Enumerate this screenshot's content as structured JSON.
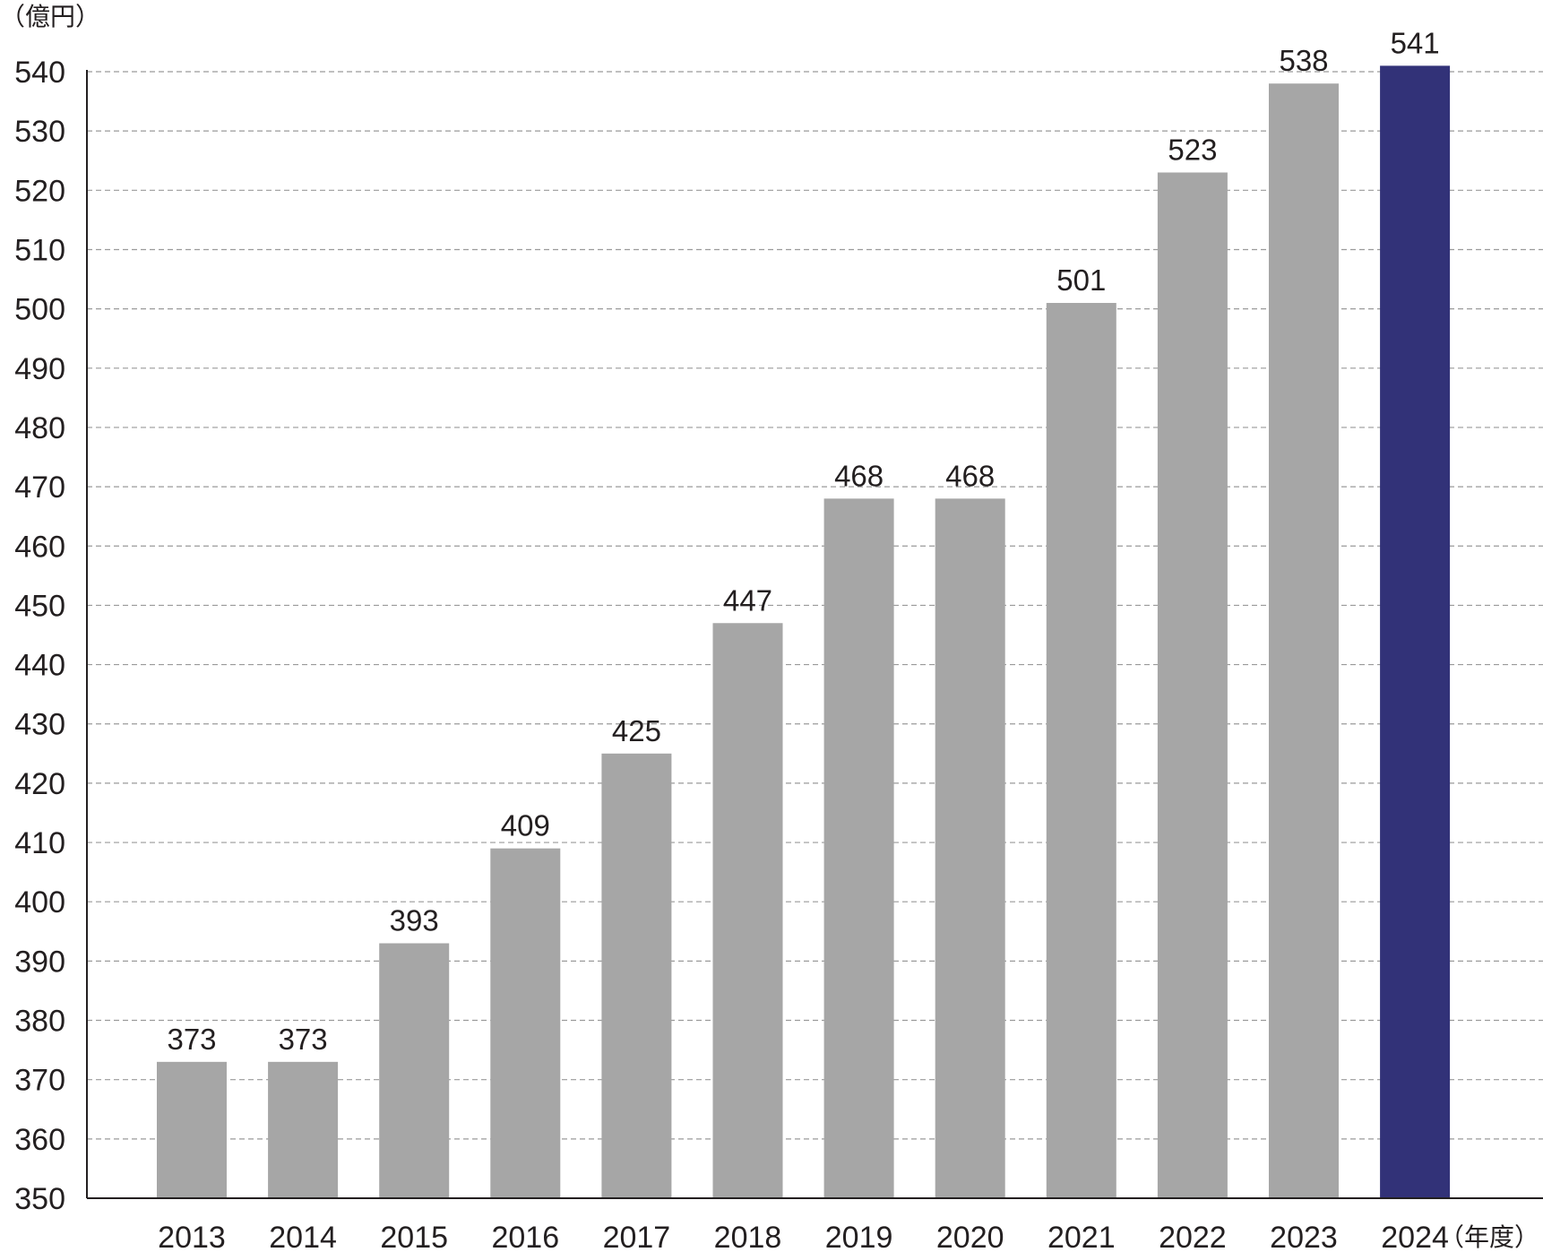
{
  "chart_data": {
    "type": "bar",
    "title": "",
    "ylabel": "（億円）",
    "xlabel": "（年度）",
    "ylim": [
      350,
      540
    ],
    "yticks": [
      350,
      360,
      370,
      380,
      390,
      400,
      410,
      420,
      430,
      440,
      450,
      460,
      470,
      480,
      490,
      500,
      510,
      520,
      530,
      540
    ],
    "grid": true,
    "categories": [
      "2013",
      "2014",
      "2015",
      "2016",
      "2017",
      "2018",
      "2019",
      "2020",
      "2021",
      "2022",
      "2023",
      "2024"
    ],
    "values": [
      373,
      373,
      393,
      409,
      425,
      447,
      468,
      468,
      501,
      523,
      538,
      541
    ],
    "value_labels": [
      "373",
      "373",
      "393",
      "409",
      "425",
      "447",
      "468",
      "468",
      "501",
      "523",
      "538",
      "541"
    ],
    "colors": {
      "default_bar": "#a6a6a6",
      "highlight_bar": "#323278",
      "grid": "#9a9a9a",
      "axis": "#231f20",
      "text": "#231f20"
    },
    "highlight_category": "2024"
  }
}
